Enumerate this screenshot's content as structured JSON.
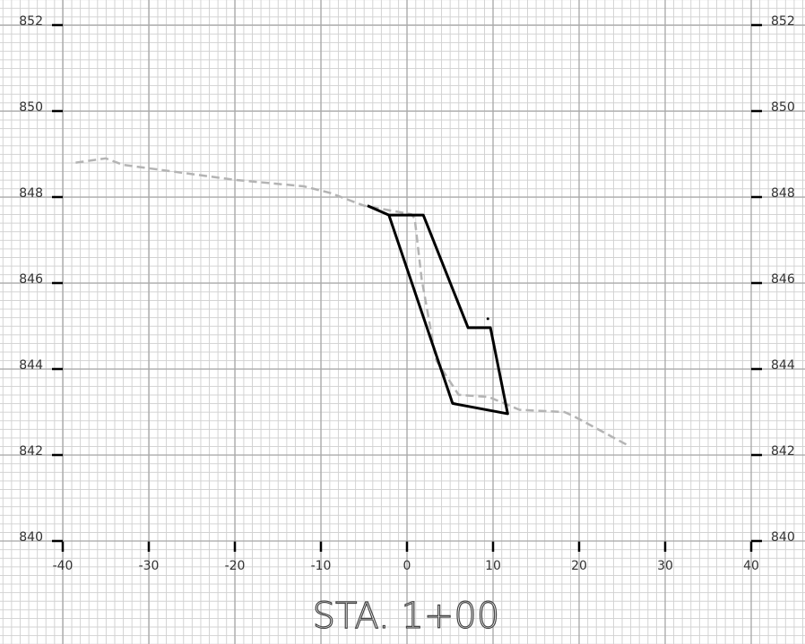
{
  "chart_data": {
    "type": "line",
    "title": "STA. 1+00",
    "xlim": [
      -40,
      40
    ],
    "ylim": [
      840,
      852
    ],
    "xticks": [
      -40,
      -30,
      -20,
      -10,
      0,
      10,
      20,
      30,
      40
    ],
    "yticks": [
      840,
      842,
      844,
      846,
      848,
      850,
      852
    ],
    "grid": true,
    "series": [
      {
        "color": "#b4b4b4",
        "dashed": true,
        "x": [
          -38.5,
          -35,
          -33,
          -20,
          -12,
          -9,
          -5,
          0.5,
          0.9,
          1.7,
          3.4,
          6,
          9.5,
          13.1,
          18.3,
          19.4,
          25.9
        ],
        "values": [
          848.8,
          848.9,
          848.75,
          848.4,
          848.25,
          848.1,
          847.8,
          847.6,
          847.5,
          846.1,
          844.2,
          843.4,
          843.35,
          843.05,
          843.0,
          842.9,
          842.2
        ]
      },
      {
        "color": "#000000",
        "dashed": false,
        "x": [
          -4.6,
          -2.1,
          1.9,
          7.1,
          9.7,
          11.7,
          5.3,
          -2.1
        ],
        "values": [
          847.8,
          847.58,
          847.58,
          844.96,
          844.96,
          842.96,
          843.2,
          847.58
        ]
      }
    ],
    "points": {
      "color": "#000000",
      "x": [
        9.4
      ],
      "values": [
        845.17
      ]
    }
  }
}
